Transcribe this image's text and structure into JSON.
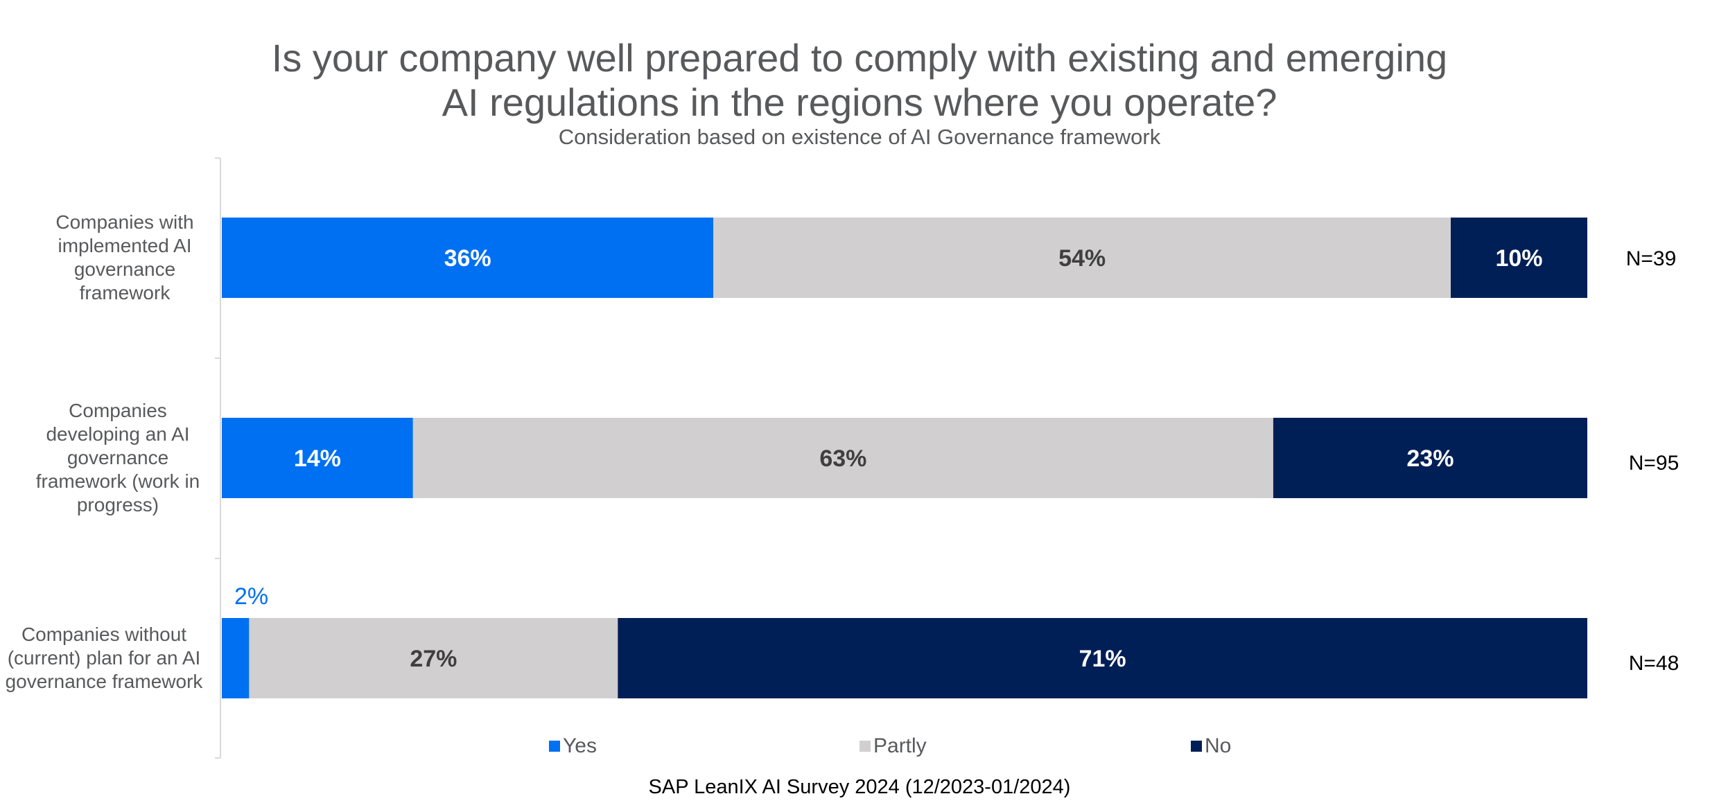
{
  "title_line1": "Is your company well prepared to comply with existing and emerging",
  "title_line2": "AI regulations in the regions where you operate?",
  "subtitle": "Consideration based on existence of AI Governance framework",
  "source": "SAP LeanIX AI Survey 2024 (12/2023-01/2024)",
  "colors": {
    "yes": "#0070f2",
    "partly": "#d1cfd0",
    "no": "#011f57",
    "label_dark": "#3f3f3f",
    "label_light": "#ffffff",
    "axis": "#d9d9d9"
  },
  "chart_data": {
    "type": "bar",
    "orientation": "horizontal",
    "stacked": true,
    "categories": [
      "Companies with implemented AI governance framework",
      "Companies developing an AI governance framework (work in progress)",
      "Companies without (current) plan for an AI governance framework"
    ],
    "series": [
      {
        "name": "Yes",
        "values": [
          36,
          14,
          2
        ],
        "labels": [
          "36%",
          "14%",
          "2%"
        ]
      },
      {
        "name": "Partly",
        "values": [
          54,
          63,
          27
        ],
        "labels": [
          "54%",
          "63%",
          "27%"
        ]
      },
      {
        "name": "No",
        "values": [
          10,
          23,
          71
        ],
        "labels": [
          "10%",
          "23%",
          "71%"
        ]
      }
    ],
    "n_labels": [
      "N=39",
      "N=95",
      "N=48"
    ],
    "xlim": [
      0,
      100
    ],
    "legend_position": "bottom",
    "grid": false
  }
}
